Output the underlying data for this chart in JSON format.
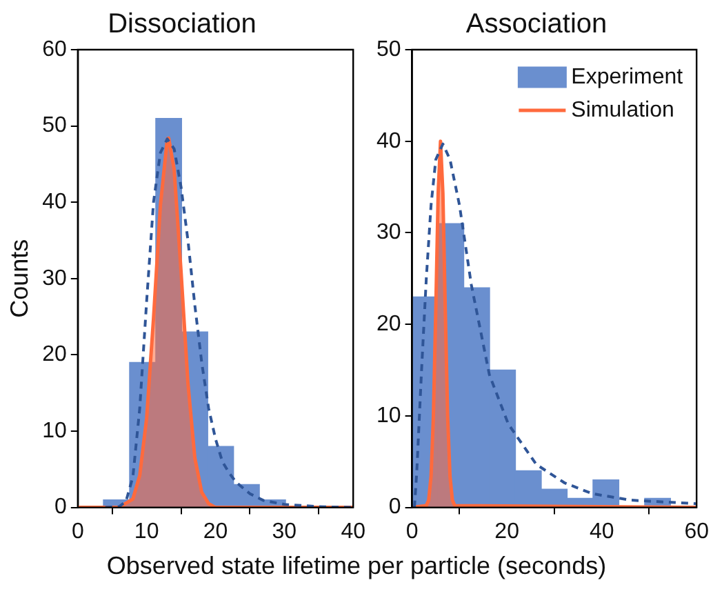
{
  "chart_data": [
    {
      "type": "histogram",
      "title": "Dissociation",
      "ylabel": "Counts",
      "xlabel": "Observed state lifetime per particle (seconds)",
      "xlim": [
        0,
        40
      ],
      "xticks": [
        0,
        10,
        20,
        30,
        40
      ],
      "ylim": [
        0,
        60
      ],
      "yticks": [
        0,
        10,
        20,
        30,
        40,
        50,
        60
      ],
      "legend": false,
      "series": [
        {
          "type": "histogram",
          "color": "#6a8fcf",
          "bins": [
            3.7,
            7.5,
            11.3,
            15.1,
            18.9,
            22.6,
            26.4,
            30.2
          ],
          "values": [
            1,
            19,
            51,
            23,
            8,
            3,
            1
          ]
        },
        {
          "type": "area",
          "color": "#ff6a3d",
          "x": [
            0,
            6,
            8,
            9,
            10,
            11,
            12,
            13,
            13.2,
            14,
            15,
            16,
            17,
            18,
            19,
            20,
            40
          ],
          "values": [
            0,
            0,
            1.1,
            4.2,
            11.7,
            24.8,
            39.6,
            48.3,
            48.4,
            44.3,
            30.9,
            16.3,
            6.5,
            2,
            0.5,
            0,
            0
          ]
        },
        {
          "type": "line",
          "color": "#2f5597",
          "line_style": "dashed",
          "x": [
            4,
            6,
            7,
            8,
            9,
            10,
            11,
            12,
            13,
            14,
            15,
            16,
            17,
            18,
            19,
            20,
            21,
            22,
            23,
            25,
            27,
            30,
            35,
            40
          ],
          "values": [
            0,
            0.1,
            0.8,
            4,
            13,
            27,
            40,
            46.5,
            48.3,
            47,
            42,
            35,
            26.5,
            19,
            13,
            9,
            6,
            4.5,
            3.3,
            1.8,
            0.9,
            0.4,
            0.1,
            0
          ]
        }
      ]
    },
    {
      "type": "histogram",
      "title": "Association",
      "xlim": [
        0,
        60
      ],
      "xticks": [
        0,
        20,
        40,
        60
      ],
      "ylim": [
        0,
        50
      ],
      "yticks": [
        0,
        10,
        20,
        30,
        40,
        50
      ],
      "legend": "top right",
      "series": [
        {
          "type": "histogram",
          "name": "Experiment",
          "color": "#6a8fcf",
          "bins": [
            0,
            5.45,
            10.9,
            16.35,
            21.8,
            27.25,
            32.7,
            38.15,
            43.6,
            49.05,
            54.5
          ],
          "values": [
            23,
            31,
            24,
            15,
            4,
            2,
            1,
            3,
            0,
            1
          ]
        },
        {
          "type": "area",
          "name": "Simulation",
          "color": "#ff6a3d",
          "x": [
            0,
            3,
            3.5,
            4,
            4.5,
            5,
            5.5,
            6,
            6.5,
            7,
            7.5,
            8,
            8.5,
            9,
            60
          ],
          "values": [
            0,
            0.2,
            0.8,
            3.4,
            10,
            21.6,
            34.3,
            40,
            34.3,
            21.6,
            10,
            3.4,
            0.8,
            0.2,
            0
          ]
        },
        {
          "type": "line",
          "color": "#2f5597",
          "line_style": "dashed",
          "x": [
            0.5,
            1,
            2,
            3,
            4,
            5,
            6.5,
            8,
            10,
            12.5,
            16.3,
            20.3,
            26.2,
            32.1,
            38,
            46,
            60
          ],
          "values": [
            0,
            4,
            15,
            25,
            33,
            38,
            39.7,
            38,
            33,
            24.3,
            14.5,
            9.1,
            4.7,
            2.7,
            1.5,
            0.8,
            0.4
          ]
        }
      ]
    }
  ]
}
